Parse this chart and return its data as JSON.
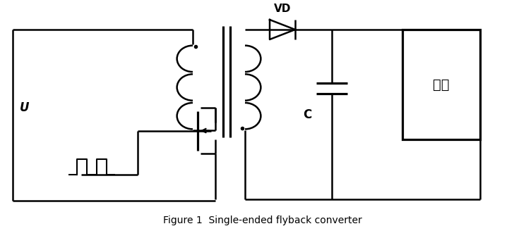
{
  "title": "Figure 1  Single-ended flyback converter",
  "title_fontsize": 10,
  "bg_color": "#ffffff",
  "line_color": "#000000",
  "lw": 1.8,
  "figsize": [
    7.45,
    3.28
  ],
  "dpi": 100,
  "vd_label": "VD",
  "c_label": "C",
  "ud_label": "U⁤",
  "load_label": "负载"
}
